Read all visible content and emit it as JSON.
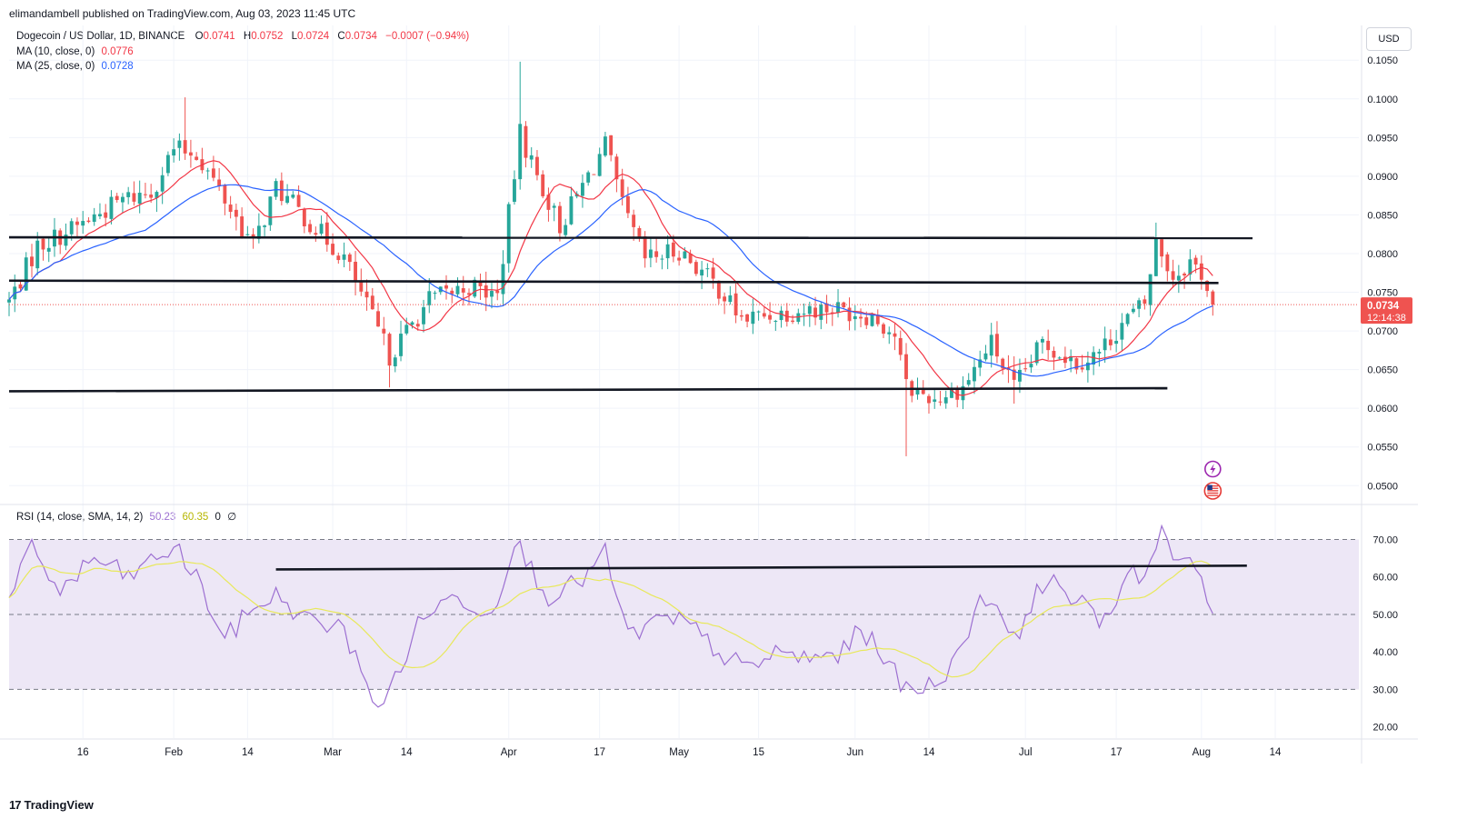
{
  "header": {
    "published": "elimandambell published on TradingView.com, Aug 03, 2023 11:45 UTC"
  },
  "legend": {
    "symbol": "Dogecoin / US Dollar, 1D, BINANCE",
    "o_label": "O",
    "o": "0.0741",
    "h_label": "H",
    "h": "0.0752",
    "l_label": "L",
    "l": "0.0724",
    "c_label": "C",
    "c": "0.0734",
    "change": "−0.0007 (−0.94%)",
    "ma10_label": "MA (10, close, 0)",
    "ma10_value": "0.0776",
    "ma25_label": "MA (25, close, 0)",
    "ma25_value": "0.0728",
    "rsi_label": "RSI (14, close, SMA, 14, 2)",
    "rsi_value": "50.23",
    "rsi_ma_value": "60.35",
    "rsi_extra1": "0",
    "rsi_extra2": "∅"
  },
  "currency_button": "USD",
  "price_badge": {
    "price": "0.0734",
    "countdown": "12:14:38"
  },
  "footer": {
    "brand": "TradingView",
    "logo": "17"
  },
  "colors": {
    "up": "#26a69a",
    "down": "#ef5350",
    "ma10": "#f23645",
    "ma25": "#2962ff",
    "rsi": "#9c6fd1",
    "rsi_ma": "#e8e85a",
    "rsi_band": "#ede7f6",
    "trendline": "#131722"
  },
  "icons": [
    "lightning-event-icon",
    "us-flag-event-icon"
  ],
  "chart_data": [
    {
      "type": "candlestick",
      "title": "Dogecoin / US Dollar, 1D, BINANCE",
      "x_ticks": [
        "16",
        "Feb",
        "14",
        "Mar",
        "14",
        "Apr",
        "17",
        "May",
        "15",
        "Jun",
        "14",
        "Jul",
        "17",
        "Aug",
        "14"
      ],
      "y_ticks": [
        "0.0500",
        "0.0550",
        "0.0600",
        "0.0650",
        "0.0700",
        "0.0750",
        "0.0800",
        "0.0850",
        "0.0900",
        "0.0950",
        "0.1000",
        "0.1050"
      ],
      "ylim": [
        0.0478,
        0.1062
      ],
      "x_range_days": [
        "2023-01-03",
        "2023-08-26"
      ],
      "current_price": 0.0734,
      "price_anchors": [
        [
          "2023-01-03",
          0.0738
        ],
        [
          "2023-01-08",
          0.081
        ],
        [
          "2023-01-15",
          0.0835
        ],
        [
          "2023-01-23",
          0.087
        ],
        [
          "2023-01-28",
          0.088
        ],
        [
          "2023-02-01",
          0.0935
        ],
        [
          "2023-02-05",
          0.093
        ],
        [
          "2023-02-10",
          0.087
        ],
        [
          "2023-02-15",
          0.081
        ],
        [
          "2023-02-19",
          0.0885
        ],
        [
          "2023-02-25",
          0.084
        ],
        [
          "2023-03-03",
          0.0795
        ],
        [
          "2023-03-09",
          0.07
        ],
        [
          "2023-03-11",
          0.0668
        ],
        [
          "2023-03-18",
          0.074
        ],
        [
          "2023-03-25",
          0.0758
        ],
        [
          "2023-03-30",
          0.0745
        ],
        [
          "2023-04-03",
          0.0955
        ],
        [
          "2023-04-06",
          0.09
        ],
        [
          "2023-04-10",
          0.0835
        ],
        [
          "2023-04-18",
          0.094
        ],
        [
          "2023-04-21",
          0.086
        ],
        [
          "2023-04-25",
          0.0792
        ],
        [
          "2023-05-01",
          0.0805
        ],
        [
          "2023-05-08",
          0.0755
        ],
        [
          "2023-05-12",
          0.0715
        ],
        [
          "2023-05-20",
          0.0725
        ],
        [
          "2023-05-28",
          0.073
        ],
        [
          "2023-06-04",
          0.072
        ],
        [
          "2023-06-08",
          0.0695
        ],
        [
          "2023-06-10",
          0.0628
        ],
        [
          "2023-06-15",
          0.0612
        ],
        [
          "2023-06-20",
          0.0628
        ],
        [
          "2023-06-25",
          0.0685
        ],
        [
          "2023-06-29",
          0.0625
        ],
        [
          "2023-07-04",
          0.0685
        ],
        [
          "2023-07-10",
          0.066
        ],
        [
          "2023-07-14",
          0.0672
        ],
        [
          "2023-07-18",
          0.071
        ],
        [
          "2023-07-22",
          0.0735
        ],
        [
          "2023-07-24",
          0.0815
        ],
        [
          "2023-07-27",
          0.077
        ],
        [
          "2023-07-30",
          0.079
        ],
        [
          "2023-08-01",
          0.0775
        ],
        [
          "2023-08-03",
          0.0734
        ]
      ],
      "series": [
        {
          "name": "MA (10, close, 0)",
          "last_value": 0.0776
        },
        {
          "name": "MA (25, close, 0)",
          "last_value": 0.0728
        }
      ],
      "annotations": [
        {
          "type": "trendline",
          "from": [
            "2023-01-03",
            0.0821
          ],
          "to": [
            "2023-08-10",
            0.082
          ]
        },
        {
          "type": "trendline",
          "from": [
            "2023-01-03",
            0.0765
          ],
          "to": [
            "2023-08-04",
            0.0762
          ]
        },
        {
          "type": "trendline",
          "from": [
            "2023-01-03",
            0.0622
          ],
          "to": [
            "2023-07-26",
            0.0626
          ]
        }
      ]
    },
    {
      "type": "line",
      "title": "RSI (14, close, SMA, 14, 2)",
      "y_ticks": [
        "20.00",
        "30.00",
        "40.00",
        "50.00",
        "60.00",
        "70.00"
      ],
      "ylim": [
        17.0,
        74.0
      ],
      "band": [
        30,
        70
      ],
      "midline": 50,
      "rsi_anchors": [
        [
          "2023-01-03",
          53
        ],
        [
          "2023-01-07",
          68
        ],
        [
          "2023-01-12",
          56
        ],
        [
          "2023-01-18",
          65
        ],
        [
          "2023-01-24",
          60
        ],
        [
          "2023-02-01",
          68
        ],
        [
          "2023-02-05",
          60
        ],
        [
          "2023-02-10",
          43
        ],
        [
          "2023-02-15",
          52
        ],
        [
          "2023-02-19",
          55
        ],
        [
          "2023-02-25",
          48
        ],
        [
          "2023-03-02",
          47
        ],
        [
          "2023-03-06",
          37
        ],
        [
          "2023-03-09",
          23
        ],
        [
          "2023-03-11",
          30
        ],
        [
          "2023-03-17",
          50
        ],
        [
          "2023-03-23",
          55
        ],
        [
          "2023-03-29",
          50
        ],
        [
          "2023-04-02",
          70
        ],
        [
          "2023-04-05",
          62
        ],
        [
          "2023-04-08",
          55
        ],
        [
          "2023-04-13",
          58
        ],
        [
          "2023-04-18",
          66
        ],
        [
          "2023-04-22",
          44
        ],
        [
          "2023-04-27",
          48
        ],
        [
          "2023-05-02",
          48
        ],
        [
          "2023-05-08",
          40
        ],
        [
          "2023-05-13",
          35
        ],
        [
          "2023-05-18",
          40
        ],
        [
          "2023-05-24",
          38
        ],
        [
          "2023-05-30",
          40
        ],
        [
          "2023-06-02",
          46
        ],
        [
          "2023-06-07",
          38
        ],
        [
          "2023-06-09",
          30
        ],
        [
          "2023-06-14",
          31
        ],
        [
          "2023-06-19",
          38
        ],
        [
          "2023-06-23",
          55
        ],
        [
          "2023-06-27",
          51
        ],
        [
          "2023-06-30",
          41
        ],
        [
          "2023-07-03",
          59
        ],
        [
          "2023-07-08",
          57
        ],
        [
          "2023-07-13",
          49
        ],
        [
          "2023-07-16",
          50
        ],
        [
          "2023-07-19",
          63
        ],
        [
          "2023-07-22",
          60
        ],
        [
          "2023-07-25",
          72
        ],
        [
          "2023-07-28",
          62
        ],
        [
          "2023-07-30",
          65
        ],
        [
          "2023-08-01",
          60
        ],
        [
          "2023-08-03",
          50.23
        ]
      ],
      "series": [
        {
          "name": "RSI (14, close, SMA, 14, 2)",
          "last_value": 50.23
        },
        {
          "name": "SMA",
          "last_value": 60.35
        }
      ],
      "annotations": [
        {
          "type": "trendline",
          "from": [
            "2023-02-19",
            62
          ],
          "to": [
            "2023-08-09",
            63
          ]
        }
      ]
    }
  ]
}
